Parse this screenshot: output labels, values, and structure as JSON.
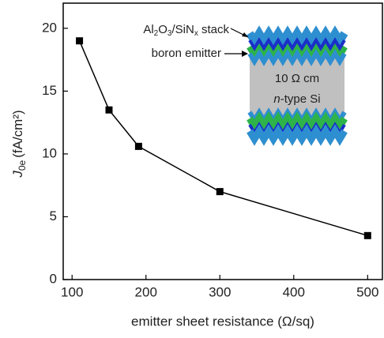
{
  "chart_data": {
    "type": "line",
    "x": [
      110,
      150,
      190,
      300,
      500
    ],
    "series": [
      {
        "color": "#000000",
        "values": [
          19.0,
          13.5,
          10.6,
          7.0,
          3.5
        ]
      }
    ],
    "xlim": [
      88,
      520
    ],
    "ylim": [
      0,
      22
    ],
    "xticks": [
      100,
      200,
      300,
      400,
      500
    ],
    "yticks": [
      0,
      5,
      10,
      15,
      20
    ],
    "xlabel": "emitter sheet resistance (Ω/sq)",
    "ylabel": {
      "symbol": "J",
      "subscript": "0e",
      "unit": "(fA/cm²)"
    },
    "inset": {
      "stack_label": [
        "Al",
        "2",
        "O",
        "3",
        "/SiN",
        "x",
        " stack"
      ],
      "emitter_label": "boron emitter",
      "resistivity": "10 Ω cm",
      "substrate": {
        "italic": "n",
        "rest": "-type Si"
      }
    }
  }
}
